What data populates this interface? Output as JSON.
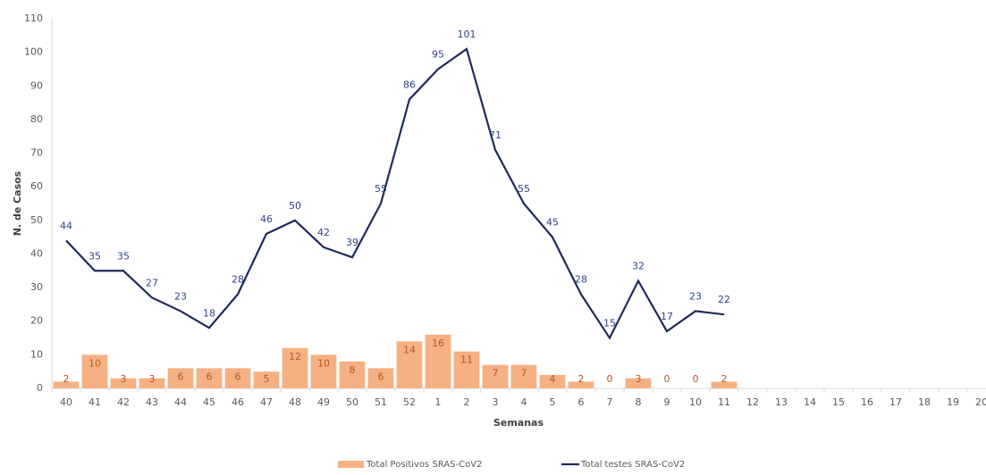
{
  "chart_data": {
    "type": "bar-line",
    "x_label": "Semanas",
    "y_label": "N. de Casos",
    "categories": [
      "40",
      "41",
      "42",
      "43",
      "44",
      "45",
      "46",
      "47",
      "48",
      "49",
      "50",
      "51",
      "52",
      "1",
      "2",
      "3",
      "4",
      "5",
      "6",
      "7",
      "8",
      "9",
      "10",
      "11",
      "12",
      "13",
      "14",
      "15",
      "16",
      "17",
      "18",
      "19",
      "20"
    ],
    "series": [
      {
        "name": "Total Positivos SRAS-CoV2",
        "type": "bar",
        "color": "#f5b183",
        "label_color": "#b8561f",
        "values": [
          2,
          10,
          3,
          3,
          6,
          6,
          6,
          5,
          12,
          10,
          8,
          6,
          14,
          16,
          11,
          7,
          7,
          4,
          2,
          0,
          3,
          0,
          0,
          2,
          null,
          null,
          null,
          null,
          null,
          null,
          null,
          null,
          null
        ]
      },
      {
        "name": "Total testes SRAS-CoV2",
        "type": "line",
        "color": "#1f2a5c",
        "label_color": "#2f4585",
        "values": [
          44,
          35,
          35,
          27,
          23,
          18,
          28,
          46,
          50,
          42,
          39,
          55,
          86,
          95,
          101,
          71,
          55,
          45,
          28,
          15,
          32,
          17,
          23,
          22,
          null,
          null,
          null,
          null,
          null,
          null,
          null,
          null,
          null
        ]
      }
    ],
    "ylim": [
      0,
      110
    ],
    "yticks": [
      0,
      10,
      20,
      30,
      40,
      50,
      60,
      70,
      80,
      90,
      100,
      110
    ],
    "legend": "bottom"
  }
}
